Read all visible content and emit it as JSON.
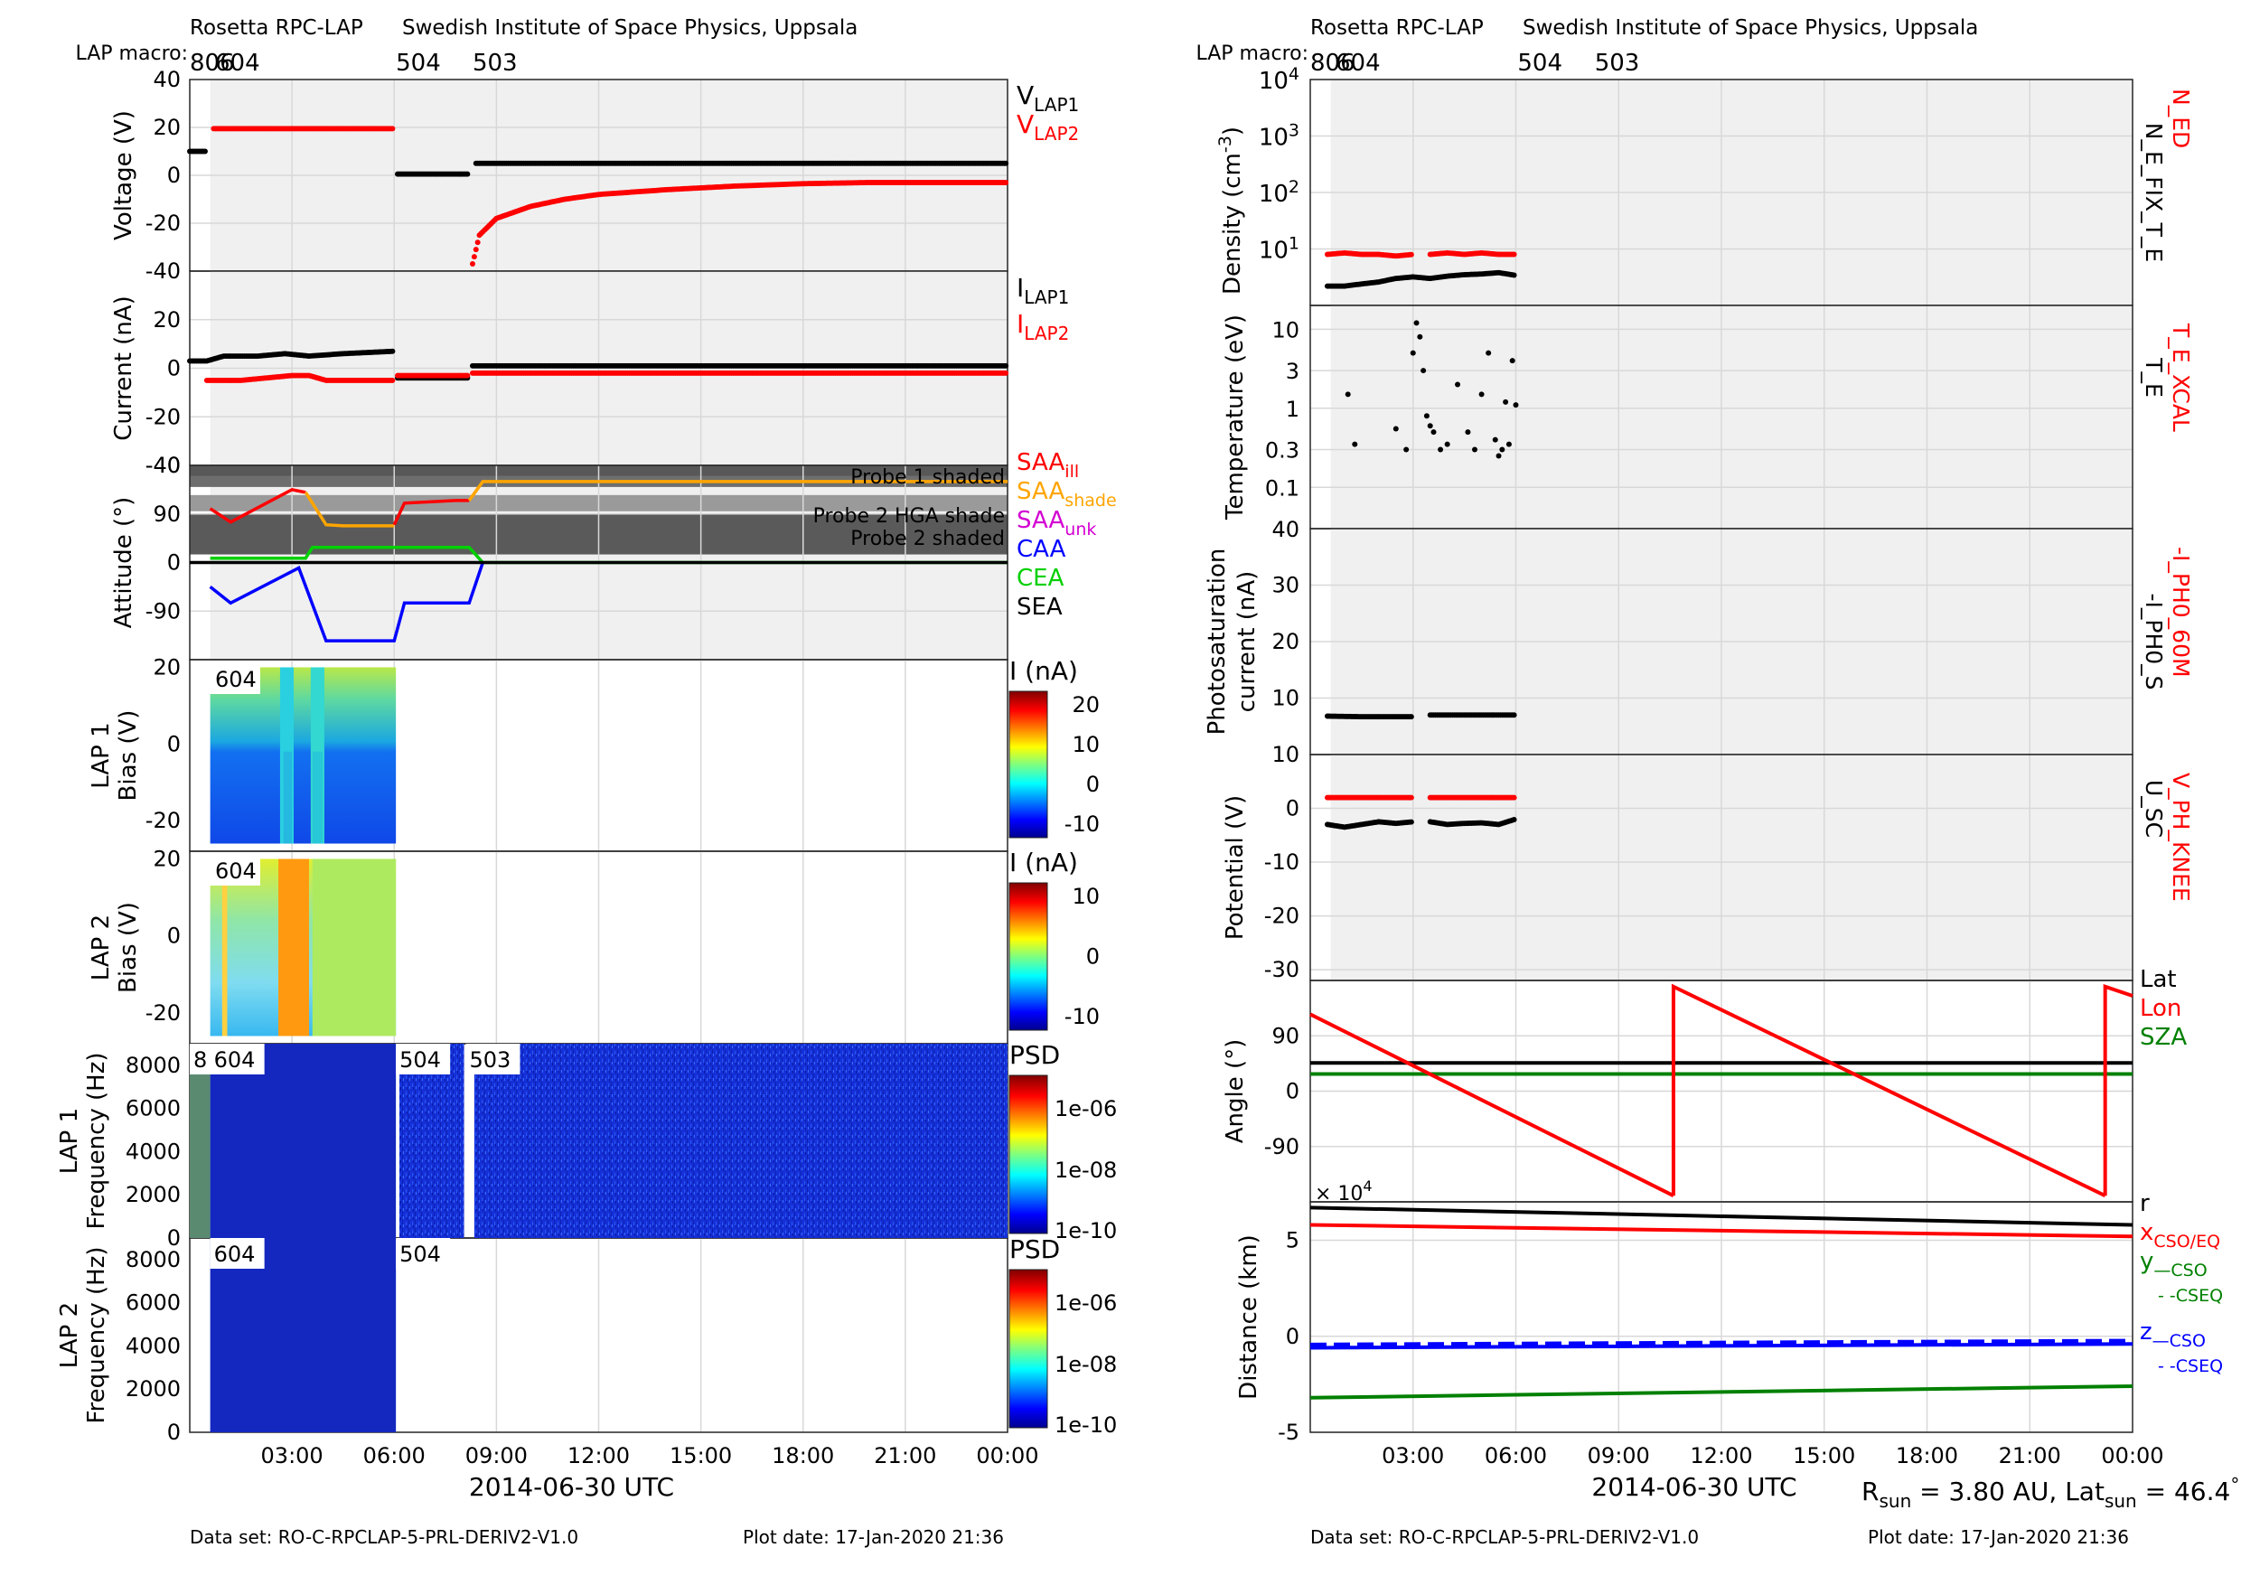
{
  "left": {
    "header": {
      "instrument": "Rosetta RPC-LAP",
      "institute": "Swedish Institute of Space Physics, Uppsala",
      "macro_label": "LAP macro:",
      "macros": [
        "806",
        "604",
        "504",
        "503"
      ]
    },
    "footer": {
      "dataset": "Data set: RO-C-RPCLAP-5-PRL-DERIV2-V1.0",
      "plot_date": "Plot date: 17-Jan-2020 21:36"
    },
    "xlabel": "2014-06-30 UTC",
    "xticks": [
      "03:00",
      "06:00",
      "09:00",
      "12:00",
      "15:00",
      "18:00",
      "21:00",
      "00:00"
    ]
  },
  "right": {
    "header": {
      "instrument": "Rosetta RPC-LAP",
      "institute": "Swedish Institute of Space Physics, Uppsala",
      "macro_label": "LAP macro:",
      "macros": [
        "806",
        "604",
        "504",
        "503"
      ]
    },
    "footer": {
      "dataset": "Data set: RO-C-RPCLAP-5-PRL-DERIV2-V1.0",
      "plot_date": "Plot date: 17-Jan-2020 21:36"
    },
    "xlabel": "2014-06-30 UTC",
    "xticks": [
      "03:00",
      "06:00",
      "09:00",
      "12:00",
      "15:00",
      "18:00",
      "21:00",
      "00:00"
    ],
    "rsun": "R",
    "rsun_sub": "sun",
    "rsun_val": " = 3.80 AU, Lat",
    "lat_sub": "sun",
    "lat_val": " = 46.4",
    "degree": "°"
  },
  "chart_data": [
    {
      "type": "scatter",
      "ylabel": "Voltage (V)",
      "ylim": [
        -40,
        40
      ],
      "yticks": [
        "40",
        "20",
        "0",
        "-20",
        "-40"
      ],
      "legend": [
        {
          "name": "V",
          "sub": "LAP1",
          "color": "#000000"
        },
        {
          "name": "V",
          "sub": "LAP2",
          "color": "#ff0000"
        }
      ],
      "series": [
        {
          "name": "VLAP1",
          "color": "#000000",
          "x": [
            0,
            0.5
          ],
          "y": [
            10,
            10
          ]
        },
        {
          "name": "VLAP2",
          "color": "#ff0000",
          "x": [
            0.7,
            6.0
          ],
          "y": [
            19.5,
            19.5
          ]
        },
        {
          "name": "VLAP1",
          "color": "#000000",
          "x": [
            6.1,
            8.2
          ],
          "y": [
            0.5,
            0.5
          ]
        },
        {
          "name": "VLAP1",
          "color": "#000000",
          "x": [
            8.4,
            24
          ],
          "y": [
            5,
            5
          ]
        },
        {
          "name": "VLAP2",
          "color": "#ff0000",
          "x": [
            8.3,
            8.5,
            9,
            10,
            11,
            12,
            14,
            16,
            18,
            20,
            24
          ],
          "y": [
            -37,
            -25,
            -18,
            -13,
            -10,
            -8,
            -6,
            -4.5,
            -3.5,
            -3,
            -3
          ]
        }
      ]
    },
    {
      "type": "scatter",
      "ylabel": "Current (nA)",
      "ylim": [
        -40,
        40
      ],
      "yticks": [
        "20",
        "0",
        "-20",
        "-40"
      ],
      "legend": [
        {
          "name": "I",
          "sub": "LAP1",
          "color": "#000000"
        },
        {
          "name": "I",
          "sub": "LAP2",
          "color": "#ff0000"
        }
      ],
      "series": [
        {
          "name": "ILAP1",
          "color": "#000000",
          "x": [
            0,
            0.5,
            1,
            2,
            2.8,
            3.5,
            4.5,
            6.0
          ],
          "y": [
            3,
            3,
            5,
            5,
            6,
            5,
            6,
            7
          ]
        },
        {
          "name": "ILAP2",
          "color": "#ff0000",
          "x": [
            0.5,
            1.5,
            3,
            3.5,
            4.0,
            6.0
          ],
          "y": [
            -5,
            -5,
            -3,
            -3,
            -5,
            -5
          ]
        },
        {
          "name": "ILAP",
          "color": "#000000",
          "x": [
            6.1,
            8.2
          ],
          "y": [
            -4,
            -4
          ]
        },
        {
          "name": "ILAP",
          "color": "#ff0000",
          "x": [
            6.1,
            8.2
          ],
          "y": [
            -3,
            -3
          ]
        },
        {
          "name": "ILAP1",
          "color": "#000000",
          "x": [
            8.3,
            24
          ],
          "y": [
            1,
            1
          ]
        },
        {
          "name": "ILAP2",
          "color": "#ff0000",
          "x": [
            8.3,
            24
          ],
          "y": [
            -2,
            -2
          ]
        }
      ]
    },
    {
      "type": "line",
      "ylabel": "Attitude (°)",
      "ylim": [
        -180,
        180
      ],
      "yticks": [
        "90",
        "0",
        "-90"
      ],
      "annotations": [
        "Probe 1 shaded",
        "Probe 2 HGA shade",
        "Probe 2 shaded"
      ],
      "legend": [
        {
          "name": "SAA",
          "sub": "ill",
          "color": "#ff0000"
        },
        {
          "name": "SAA",
          "sub": "shade",
          "color": "#ffa500"
        },
        {
          "name": "SAA",
          "sub": "unk",
          "color": "#d300d3"
        },
        {
          "name": "CAA",
          "sub": "",
          "color": "#0000ff"
        },
        {
          "name": "CEA",
          "sub": "",
          "color": "#00d000"
        },
        {
          "name": "SEA",
          "sub": "",
          "color": "#000000"
        }
      ],
      "series": [
        {
          "name": "SAA",
          "color": "#ff0000",
          "x": [
            0.6,
            1.2,
            3.0,
            3.4
          ],
          "y": [
            100,
            75,
            135,
            130
          ]
        },
        {
          "name": "SAA",
          "color": "#ffa500",
          "x": [
            3.4,
            4.0,
            4.5,
            6.0
          ],
          "y": [
            130,
            70,
            68,
            68
          ]
        },
        {
          "name": "SAA",
          "color": "#ff0000",
          "x": [
            6.0,
            6.3,
            7.8,
            8.2
          ],
          "y": [
            70,
            110,
            115,
            115
          ]
        },
        {
          "name": "SAA",
          "color": "#ffa500",
          "x": [
            8.2,
            8.6,
            24
          ],
          "y": [
            115,
            150,
            150
          ]
        },
        {
          "name": "CEA",
          "color": "#00d000",
          "x": [
            0.6,
            3.4,
            3.6,
            8.2,
            8.6,
            24
          ],
          "y": [
            8,
            8,
            28,
            28,
            0,
            0
          ]
        },
        {
          "name": "CAA",
          "color": "#0000ff",
          "x": [
            0.6,
            1.2,
            3.2,
            4.0,
            6.0,
            6.3,
            8.2,
            8.6
          ],
          "y": [
            -45,
            -75,
            -10,
            -145,
            -145,
            -75,
            -75,
            0
          ]
        },
        {
          "name": "SEA",
          "color": "#000000",
          "x": [
            0,
            24
          ],
          "y": [
            0,
            0
          ]
        }
      ]
    },
    {
      "type": "heatmap",
      "ylabel": "Bias (V)",
      "ylabel_top": "LAP 1",
      "ylim": [
        -28,
        22
      ],
      "yticks": [
        "20",
        "0",
        "-20"
      ],
      "label": "604",
      "colorbar_title": "I (nA)",
      "colorbar_ticks": [
        "20",
        "10",
        "0",
        "-10"
      ]
    },
    {
      "type": "heatmap",
      "ylabel": "Bias (V)",
      "ylabel_top": "LAP 2",
      "ylim": [
        -28,
        22
      ],
      "yticks": [
        "20",
        "0",
        "-20"
      ],
      "label": "604",
      "colorbar_title": "I (nA)",
      "colorbar_ticks": [
        "10",
        "0",
        "-10"
      ]
    },
    {
      "type": "heatmap",
      "ylabel": "Frequency (Hz)",
      "ylabel_top": "LAP 1",
      "ylim": [
        0,
        9000
      ],
      "yticks": [
        "8000",
        "6000",
        "4000",
        "2000",
        "0"
      ],
      "labels": [
        "8",
        "604",
        "504",
        "503"
      ],
      "colorbar_title": "PSD",
      "colorbar_ticks": [
        "1e-06",
        "1e-08",
        "1e-10"
      ]
    },
    {
      "type": "heatmap",
      "ylabel": "Frequency (Hz)",
      "ylabel_top": "LAP 2",
      "ylim": [
        0,
        9000
      ],
      "yticks": [
        "8000",
        "6000",
        "4000",
        "2000",
        "0"
      ],
      "labels": [
        "604",
        "504"
      ],
      "colorbar_title": "PSD",
      "colorbar_ticks": [
        "1e-06",
        "1e-08",
        "1e-10"
      ]
    },
    {
      "type": "scatter",
      "ylabel": "Density (cm",
      "ylabel_sup": "-3",
      "ylabel_end": ")",
      "yscale": "log",
      "ylim": [
        1,
        10000
      ],
      "yticks": [
        {
          "b": "10",
          "e": "4"
        },
        {
          "b": "10",
          "e": "3"
        },
        {
          "b": "10",
          "e": "2"
        },
        {
          "b": "10",
          "e": "1"
        }
      ],
      "legend": [
        {
          "name": "N_E_FIX_T_E",
          "color": "#000000"
        },
        {
          "name": "N_ED",
          "color": "#ff0000"
        }
      ],
      "series": [
        {
          "name": "N_ED",
          "color": "#ff0000",
          "x": [
            0.5,
            1,
            1.5,
            2,
            2.5,
            3.0
          ],
          "y": [
            8,
            8.5,
            8,
            8,
            7.5,
            8
          ]
        },
        {
          "name": "N_ED",
          "color": "#ff0000",
          "x": [
            3.5,
            4,
            4.5,
            5,
            5.5,
            6.0
          ],
          "y": [
            8,
            8.5,
            8,
            8.5,
            8,
            8
          ]
        },
        {
          "name": "N_E_FIX_T_E",
          "color": "#000000",
          "x": [
            0.5,
            1,
            1.5,
            2,
            2.5,
            3.0,
            3.5,
            4,
            4.5,
            5,
            5.5,
            6.0
          ],
          "y": [
            2.2,
            2.2,
            2.4,
            2.6,
            3,
            3.2,
            3,
            3.3,
            3.5,
            3.6,
            3.8,
            3.4
          ]
        }
      ]
    },
    {
      "type": "scatter",
      "ylabel": "Temperature (eV)",
      "yscale": "log",
      "ylim": [
        0.03,
        20
      ],
      "yticks": [
        "10",
        "3",
        "1",
        "0.3",
        "0.1"
      ],
      "legend": [
        {
          "name": "T_E",
          "color": "#000000"
        },
        {
          "name": "T_E_XCAL",
          "color": "#ff0000"
        }
      ],
      "series": [
        {
          "name": "T_E",
          "color": "#000000",
          "x": [
            1.1,
            1.3,
            2.5,
            2.8,
            3.0,
            3.1,
            3.2,
            3.3,
            3.4,
            3.5,
            3.6,
            3.8,
            4.0,
            4.3,
            4.6,
            4.8,
            5.0,
            5.2,
            5.4,
            5.5,
            5.6,
            5.7,
            5.8,
            5.9,
            6.0
          ],
          "y": [
            1.5,
            0.35,
            0.55,
            0.3,
            5,
            12,
            8,
            3,
            0.8,
            0.6,
            0.5,
            0.3,
            0.35,
            2,
            0.5,
            0.3,
            1.5,
            5,
            0.4,
            0.25,
            0.3,
            1.2,
            0.35,
            4,
            1.1
          ]
        }
      ]
    },
    {
      "type": "scatter",
      "ylabel": "Photosaturation",
      "ylabel_line2": "current (nA)",
      "ylim": [
        0,
        40
      ],
      "yticks": [
        "40",
        "30",
        "20",
        "10"
      ],
      "legend": [
        {
          "name": "-I_PH0_S",
          "color": "#000000"
        },
        {
          "name": "-I_PH0_60M",
          "color": "#ff0000"
        }
      ],
      "series": [
        {
          "name": "-I_PH0_S",
          "color": "#000000",
          "x": [
            0.5,
            1.5,
            2.5,
            3.0
          ],
          "y": [
            6.8,
            6.7,
            6.7,
            6.7
          ]
        },
        {
          "name": "-I_PH0_S",
          "color": "#000000",
          "x": [
            3.5,
            4.5,
            5.5,
            6.0
          ],
          "y": [
            7,
            7,
            7,
            7
          ]
        }
      ]
    },
    {
      "type": "scatter",
      "ylabel": "Potential (V)",
      "ylim": [
        -32,
        10
      ],
      "yticks": [
        "10",
        "0",
        "-10",
        "-20",
        "-30"
      ],
      "legend": [
        {
          "name": "U_SC",
          "color": "#000000"
        },
        {
          "name": "V_PH_KNEE",
          "color": "#ff0000"
        }
      ],
      "series": [
        {
          "name": "V_PH_KNEE",
          "color": "#ff0000",
          "x": [
            0.5,
            1.5,
            2.5,
            3.0
          ],
          "y": [
            2,
            2,
            2,
            2
          ]
        },
        {
          "name": "V_PH_KNEE",
          "color": "#ff0000",
          "x": [
            3.5,
            4.5,
            5.5,
            6.0
          ],
          "y": [
            2,
            2,
            2,
            2
          ]
        },
        {
          "name": "U_SC",
          "color": "#000000",
          "x": [
            0.5,
            1,
            1.5,
            2,
            2.5,
            3.0
          ],
          "y": [
            -3,
            -3.5,
            -3,
            -2.5,
            -2.8,
            -2.5
          ]
        },
        {
          "name": "U_SC",
          "color": "#000000",
          "x": [
            3.5,
            4,
            4.5,
            5,
            5.5,
            6.0
          ],
          "y": [
            -2.5,
            -3,
            -2.8,
            -2.7,
            -3,
            -2
          ]
        }
      ]
    },
    {
      "type": "line",
      "ylabel": "Angle (°)",
      "ylim": [
        -180,
        180
      ],
      "yticks": [
        "90",
        "0",
        "-90"
      ],
      "legend": [
        {
          "name": "Lat",
          "color": "#000000"
        },
        {
          "name": "Lon",
          "color": "#ff0000"
        },
        {
          "name": "SZA",
          "color": "#008000"
        }
      ],
      "series": [
        {
          "name": "Lat",
          "color": "#000000",
          "x": [
            0,
            24
          ],
          "y": [
            46,
            46
          ]
        },
        {
          "name": "SZA",
          "color": "#008000",
          "x": [
            0,
            24
          ],
          "y": [
            28,
            28
          ]
        },
        {
          "name": "Lon",
          "color": "#ff0000",
          "x": [
            0,
            10.6
          ],
          "y": [
            125,
            -170
          ]
        },
        {
          "name": "Lon",
          "color": "#ff0000",
          "x": [
            10.6,
            10.6,
            23.2
          ],
          "y": [
            -170,
            170,
            -170
          ]
        },
        {
          "name": "Lon",
          "color": "#ff0000",
          "x": [
            23.2,
            23.2,
            24
          ],
          "y": [
            -170,
            170,
            155
          ]
        }
      ]
    },
    {
      "type": "line",
      "ylabel": "Distance (km)",
      "multiplier": "× 10",
      "multiplier_exp": "4",
      "ylim": [
        -5,
        7
      ],
      "yticks": [
        "5",
        "0",
        "-5"
      ],
      "legend": [
        {
          "name": "r",
          "sub": "",
          "color": "#000000"
        },
        {
          "name": "x",
          "sub": "CSO/EQ",
          "color": "#ff0000"
        },
        {
          "name": "y",
          "sub": "—CSO",
          "color": "#008000"
        },
        {
          "name": "",
          "sub": "- -CSEQ",
          "color": "#008000"
        },
        {
          "name": "z",
          "sub": "—CSO",
          "color": "#0000ff"
        },
        {
          "name": "",
          "sub": "- -CSEQ",
          "color": "#0000ff"
        }
      ],
      "series": [
        {
          "name": "r",
          "color": "#000000",
          "x": [
            0,
            24
          ],
          "y": [
            6.7,
            5.8
          ]
        },
        {
          "name": "x",
          "color": "#ff0000",
          "x": [
            0,
            24
          ],
          "y": [
            5.8,
            5.2
          ]
        },
        {
          "name": "z",
          "color": "#0000ff",
          "x": [
            0,
            24
          ],
          "y": [
            -0.6,
            -0.4
          ]
        },
        {
          "name": "y",
          "color": "#008000",
          "x": [
            0,
            24
          ],
          "y": [
            -3.2,
            -2.6
          ]
        }
      ]
    }
  ]
}
